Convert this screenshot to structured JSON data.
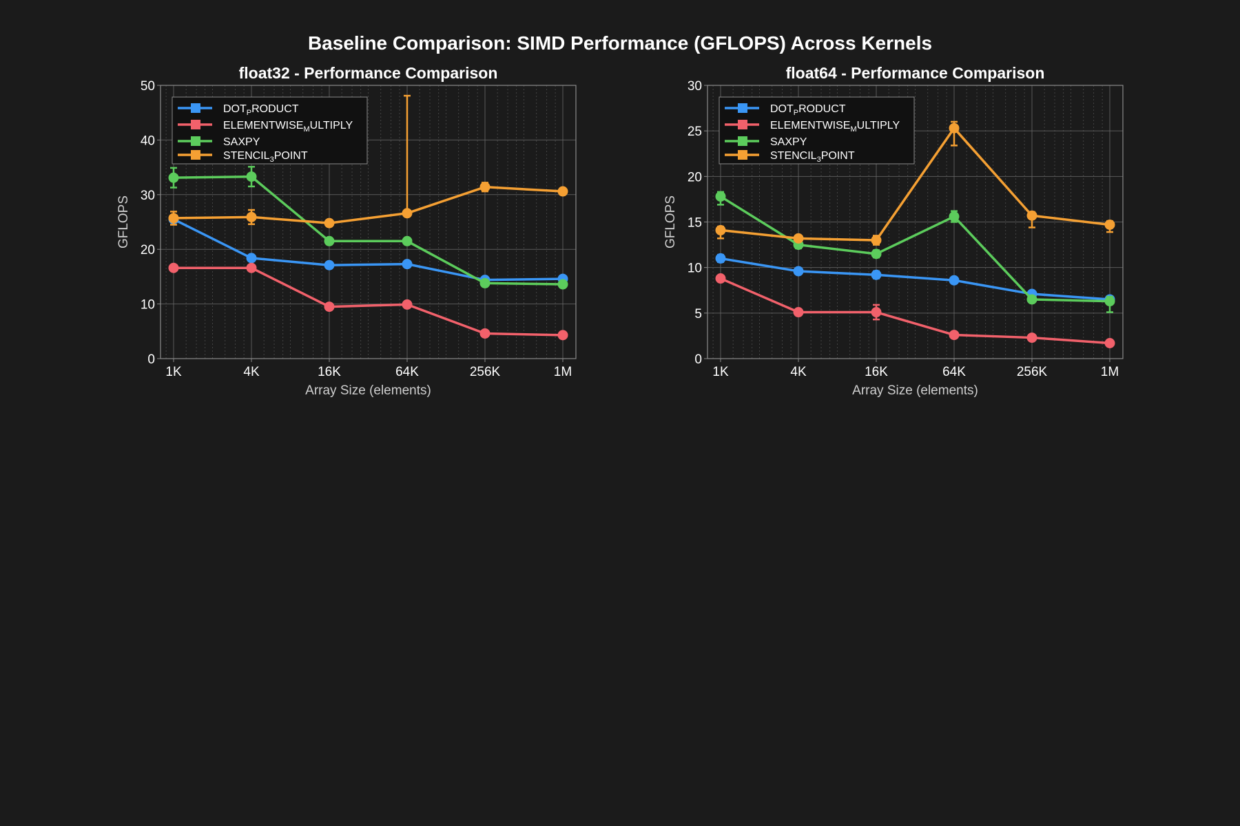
{
  "figure": {
    "suptitle": "Baseline Comparison: SIMD Performance (GFLOPS) Across Kernels"
  },
  "series_styles": [
    {
      "key": "dot_product",
      "color": "#3a96f5"
    },
    {
      "key": "elementwise_multiply",
      "color": "#f2616b"
    },
    {
      "key": "saxpy",
      "color": "#5ccc5c"
    },
    {
      "key": "stencil_3point",
      "color": "#f5a033"
    }
  ],
  "legend": [
    {
      "main": "DOT",
      "sub": "P",
      "rest": "RODUCT"
    },
    {
      "main": "ELEMENTWISE",
      "sub": "M",
      "rest": "ULTIPLY"
    },
    {
      "main": "SAXPY",
      "sub": "",
      "rest": ""
    },
    {
      "main": "STENCIL",
      "sub": "3",
      "rest": "POINT"
    }
  ],
  "chart_data": [
    {
      "type": "line",
      "title": "float32 - Performance Comparison",
      "xlabel": "Array Size (elements)",
      "ylabel": "GFLOPS",
      "xscale": "log2",
      "categories": [
        "1K",
        "4K",
        "16K",
        "64K",
        "256K",
        "1M"
      ],
      "ylim": [
        0,
        50
      ],
      "yticks": [
        0,
        10,
        20,
        30,
        40,
        50
      ],
      "legend_position": "upper-left",
      "grid": true,
      "series": [
        {
          "name": "DOT_PRODUCT",
          "values": [
            25.5,
            18.4,
            17.1,
            17.3,
            14.4,
            14.6
          ],
          "err_low": [
            0.3,
            0.3,
            0.3,
            0.3,
            0.3,
            0.3
          ],
          "err_high": [
            0.3,
            0.3,
            0.3,
            0.3,
            0.3,
            0.3
          ]
        },
        {
          "name": "ELEMENTWISE_MULTIPLY",
          "values": [
            16.6,
            16.6,
            9.5,
            9.9,
            4.6,
            4.3
          ],
          "err_low": [
            0.4,
            0.4,
            0.2,
            0.2,
            0.2,
            0.2
          ],
          "err_high": [
            0.4,
            0.4,
            0.2,
            0.2,
            0.2,
            0.2
          ]
        },
        {
          "name": "SAXPY",
          "values": [
            33.1,
            33.3,
            21.5,
            21.5,
            13.8,
            13.6
          ],
          "err_low": [
            1.8,
            1.8,
            0.5,
            0.5,
            0.4,
            0.4
          ],
          "err_high": [
            1.8,
            1.8,
            0.5,
            0.5,
            0.4,
            0.4
          ]
        },
        {
          "name": "STENCIL_3POINT",
          "values": [
            25.7,
            25.9,
            24.8,
            26.6,
            31.4,
            30.6
          ],
          "err_low": [
            1.2,
            1.3,
            0.4,
            0.4,
            0.8,
            0.5
          ],
          "err_high": [
            1.2,
            1.3,
            0.4,
            21.5,
            0.8,
            0.5
          ]
        }
      ]
    },
    {
      "type": "line",
      "title": "float64 - Performance Comparison",
      "xlabel": "Array Size (elements)",
      "ylabel": "GFLOPS",
      "xscale": "log2",
      "categories": [
        "1K",
        "4K",
        "16K",
        "64K",
        "256K",
        "1M"
      ],
      "ylim": [
        0,
        30
      ],
      "yticks": [
        0,
        5,
        10,
        15,
        20,
        25,
        30
      ],
      "legend_position": "upper-left",
      "grid": true,
      "series": [
        {
          "name": "DOT_PRODUCT",
          "values": [
            11.0,
            9.6,
            9.2,
            8.6,
            7.1,
            6.5
          ],
          "err_low": [
            0.4,
            0.2,
            0.4,
            0.2,
            0.2,
            0.2
          ],
          "err_high": [
            0.4,
            0.2,
            0.4,
            0.2,
            0.2,
            0.2
          ]
        },
        {
          "name": "ELEMENTWISE_MULTIPLY",
          "values": [
            8.8,
            5.1,
            5.1,
            2.6,
            2.3,
            1.7
          ],
          "err_low": [
            0.3,
            0.2,
            0.8,
            0.1,
            0.1,
            0.1
          ],
          "err_high": [
            0.3,
            0.2,
            0.8,
            0.1,
            0.1,
            0.1
          ]
        },
        {
          "name": "SAXPY",
          "values": [
            17.8,
            12.5,
            11.5,
            15.6,
            6.5,
            6.3
          ],
          "err_low": [
            0.9,
            0.4,
            0.4,
            0.6,
            0.3,
            1.2
          ],
          "err_high": [
            0.5,
            0.4,
            0.4,
            0.6,
            0.3,
            0.5
          ]
        },
        {
          "name": "STENCIL_3POINT",
          "values": [
            14.1,
            13.2,
            13.0,
            25.3,
            15.7,
            14.7
          ],
          "err_low": [
            0.9,
            0.3,
            0.5,
            1.9,
            1.3,
            0.8
          ],
          "err_high": [
            0.4,
            0.3,
            0.5,
            0.7,
            0.4,
            0.4
          ]
        }
      ]
    }
  ]
}
